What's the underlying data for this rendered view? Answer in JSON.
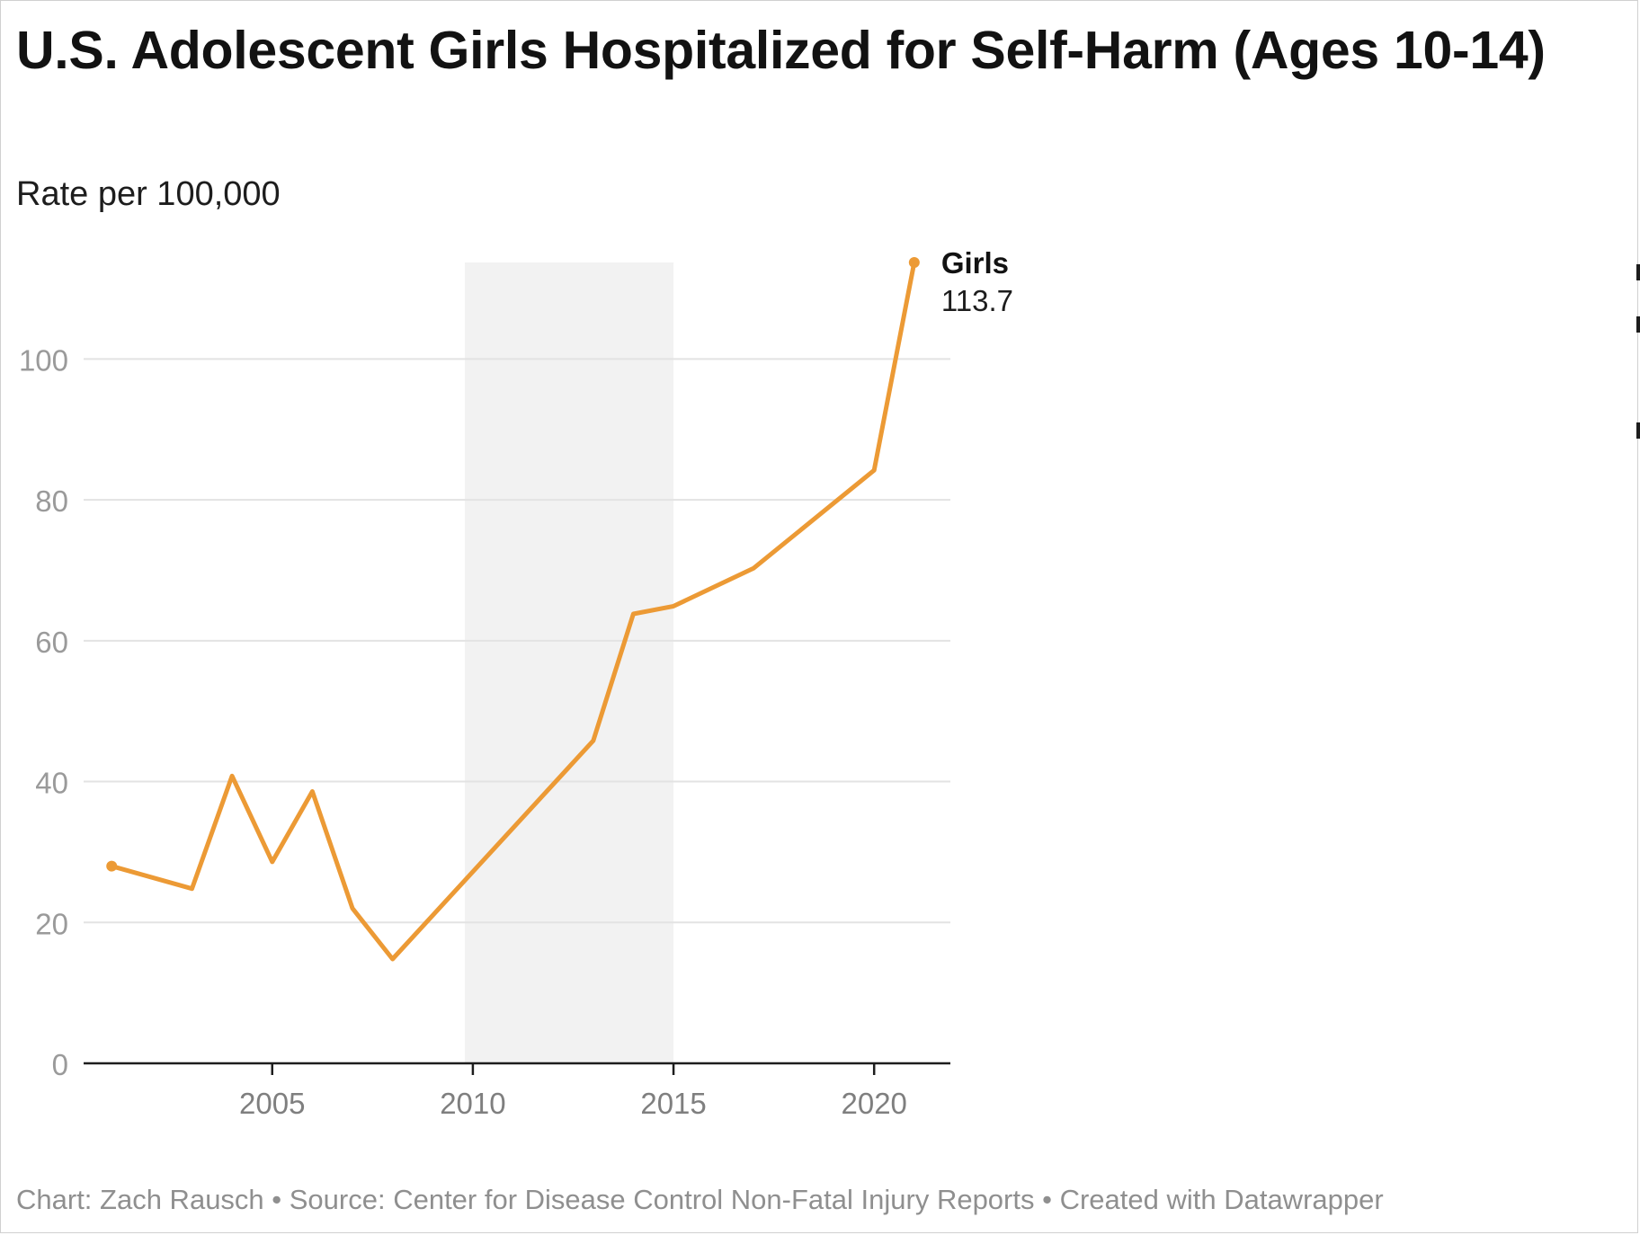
{
  "title": "U.S. Adolescent Girls Hospitalized for Self-Harm (Ages 10-14)",
  "subtitle": "Rate per 100,000",
  "footer": "Chart: Zach Rausch • Source: Center for Disease Control Non-Fatal Injury Reports • Created with Datawrapper",
  "colors": {
    "line": "#ec9a35",
    "grid": "#e3e3e3",
    "axis": "#1d1d1d",
    "band": "#f2f2f2",
    "tick_text": "#9a9a9a",
    "x_tick_text": "#7f7f7f"
  },
  "chart_data": {
    "type": "line",
    "title": "U.S. Adolescent Girls Hospitalized for Self-Harm (Ages 10-14)",
    "subtitle": "Rate per 100,000",
    "xlabel": "",
    "ylabel": "",
    "x_ticks": [
      2005,
      2010,
      2015,
      2020
    ],
    "y_ticks": [
      0,
      20,
      40,
      60,
      80,
      100
    ],
    "xlim": [
      2000.3,
      2021.9
    ],
    "ylim": [
      0,
      113.7
    ],
    "grid": "horizontal",
    "shaded_range": [
      2009.8,
      2015
    ],
    "series": [
      {
        "name": "Girls",
        "x": [
          2001,
          2003,
          2004,
          2005,
          2006,
          2007,
          2008,
          2013,
          2014,
          2015,
          2017,
          2020,
          2021
        ],
        "values": [
          28.0,
          24.8,
          40.8,
          28.6,
          38.6,
          22.0,
          14.8,
          45.8,
          63.8,
          64.9,
          70.3,
          84.2,
          113.7
        ]
      }
    ],
    "end_label": {
      "series": "Girls",
      "value_text": "113.7"
    }
  }
}
